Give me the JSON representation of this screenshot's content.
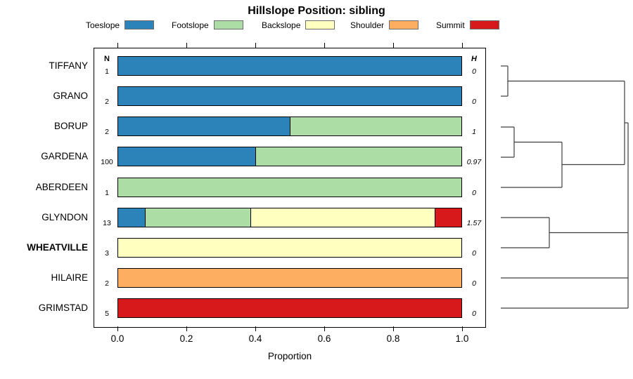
{
  "title": "Hillslope Position: sibling",
  "chart_data": {
    "type": "bar",
    "variant": "stacked-horizontal-proportion",
    "title": "Hillslope Position: sibling",
    "xlabel": "Proportion",
    "xlim": [
      0,
      1
    ],
    "grid": false,
    "legend_position": "top",
    "x_tick_labels": [
      "0.0",
      "0.2",
      "0.4",
      "0.6",
      "0.8",
      "1.0"
    ],
    "x_tick_values": [
      0.0,
      0.2,
      0.4,
      0.6,
      0.8,
      1.0
    ],
    "columns": {
      "n_header": "N",
      "h_header": "H"
    },
    "legend": [
      {
        "label": "Toeslope",
        "color": "#2B83BA"
      },
      {
        "label": "Footslope",
        "color": "#ABDDA4"
      },
      {
        "label": "Backslope",
        "color": "#FFFFBF"
      },
      {
        "label": "Shoulder",
        "color": "#FDAE61"
      },
      {
        "label": "Summit",
        "color": "#D7191C"
      }
    ],
    "categories": [
      "TIFFANY",
      "GRANO",
      "BORUP",
      "GARDENA",
      "ABERDEEN",
      "GLYNDON",
      "WHEATVILLE",
      "HILAIRE",
      "GRIMSTAD"
    ],
    "rows": [
      {
        "label": "TIFFANY",
        "bold": false,
        "n": "1",
        "h": "0",
        "segments": [
          {
            "position": "Toeslope",
            "proportion": 1.0
          }
        ]
      },
      {
        "label": "GRANO",
        "bold": false,
        "n": "2",
        "h": "0",
        "segments": [
          {
            "position": "Toeslope",
            "proportion": 1.0
          }
        ]
      },
      {
        "label": "BORUP",
        "bold": false,
        "n": "2",
        "h": "1",
        "segments": [
          {
            "position": "Toeslope",
            "proportion": 0.5
          },
          {
            "position": "Footslope",
            "proportion": 0.5
          }
        ]
      },
      {
        "label": "GARDENA",
        "bold": false,
        "n": "100",
        "h": "0.97",
        "segments": [
          {
            "position": "Toeslope",
            "proportion": 0.4
          },
          {
            "position": "Footslope",
            "proportion": 0.6
          }
        ]
      },
      {
        "label": "ABERDEEN",
        "bold": false,
        "n": "1",
        "h": "0",
        "segments": [
          {
            "position": "Footslope",
            "proportion": 1.0
          }
        ]
      },
      {
        "label": "GLYNDON",
        "bold": false,
        "n": "13",
        "h": "1.57",
        "segments": [
          {
            "position": "Toeslope",
            "proportion": 0.0769
          },
          {
            "position": "Footslope",
            "proportion": 0.3077
          },
          {
            "position": "Backslope",
            "proportion": 0.5385
          },
          {
            "position": "Summit",
            "proportion": 0.0769
          }
        ]
      },
      {
        "label": "WHEATVILLE",
        "bold": true,
        "n": "3",
        "h": "0",
        "segments": [
          {
            "position": "Backslope",
            "proportion": 1.0
          }
        ]
      },
      {
        "label": "HILAIRE",
        "bold": false,
        "n": "2",
        "h": "0",
        "segments": [
          {
            "position": "Shoulder",
            "proportion": 1.0
          }
        ]
      },
      {
        "label": "GRIMSTAD",
        "bold": false,
        "n": "5",
        "h": "0",
        "segments": [
          {
            "position": "Summit",
            "proportion": 1.0
          }
        ]
      }
    ],
    "dendrogram": {
      "line_color": "#3d3d3d",
      "segments": [
        {
          "x1": 712,
          "y1": 94,
          "x2": 722,
          "y2": 94
        },
        {
          "x1": 712,
          "y1": 137,
          "x2": 722,
          "y2": 137
        },
        {
          "x1": 722,
          "y1": 94,
          "x2": 722,
          "y2": 137
        },
        {
          "x1": 722,
          "y1": 115.5,
          "x2": 888,
          "y2": 115.5
        },
        {
          "x1": 712,
          "y1": 181,
          "x2": 731,
          "y2": 181
        },
        {
          "x1": 712,
          "y1": 224,
          "x2": 731,
          "y2": 224
        },
        {
          "x1": 731,
          "y1": 181,
          "x2": 731,
          "y2": 224
        },
        {
          "x1": 731,
          "y1": 202.5,
          "x2": 799,
          "y2": 202.5
        },
        {
          "x1": 712,
          "y1": 267,
          "x2": 799,
          "y2": 267
        },
        {
          "x1": 799,
          "y1": 202.5,
          "x2": 799,
          "y2": 267
        },
        {
          "x1": 799,
          "y1": 234.5,
          "x2": 888,
          "y2": 234.5
        },
        {
          "x1": 888,
          "y1": 115.5,
          "x2": 888,
          "y2": 234.5
        },
        {
          "x1": 888,
          "y1": 175,
          "x2": 893,
          "y2": 175
        },
        {
          "x1": 712,
          "y1": 310,
          "x2": 781,
          "y2": 310
        },
        {
          "x1": 712,
          "y1": 353,
          "x2": 781,
          "y2": 353
        },
        {
          "x1": 781,
          "y1": 310,
          "x2": 781,
          "y2": 353
        },
        {
          "x1": 781,
          "y1": 331.5,
          "x2": 893,
          "y2": 331.5
        },
        {
          "x1": 712,
          "y1": 396,
          "x2": 893,
          "y2": 396
        },
        {
          "x1": 712,
          "y1": 439,
          "x2": 893,
          "y2": 439
        },
        {
          "x1": 893,
          "y1": 175,
          "x2": 893,
          "y2": 439
        }
      ]
    }
  }
}
